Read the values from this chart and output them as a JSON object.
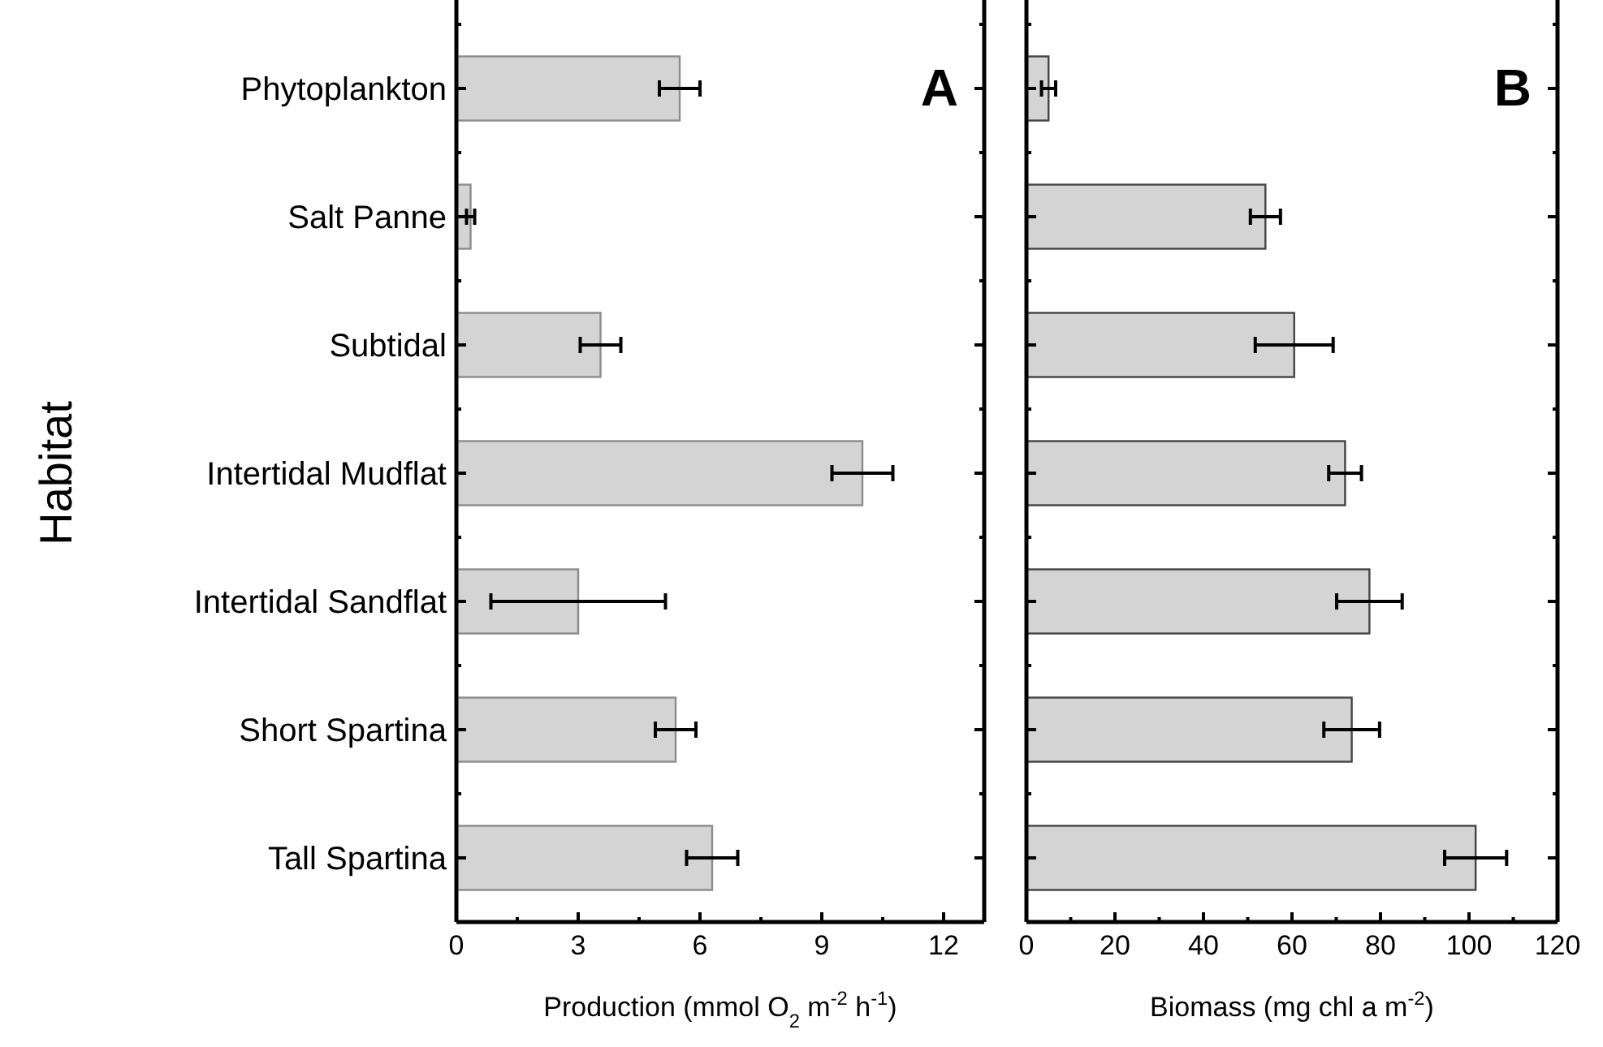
{
  "chart_data": [
    {
      "type": "bar",
      "orientation": "horizontal",
      "ylabel": "Habitat",
      "xlabel": "Production (mmol O$_{2}$ m$^{-2}$ h$^{-1}$)",
      "annotations": [
        "A"
      ],
      "categories": [
        "Phytoplankton",
        "Salt Panne",
        "Subtidal",
        "Intertidal Mudflat",
        "Intertidal Sandflat",
        "Short Spartina",
        "Tall Spartina"
      ],
      "values": [
        5.5,
        0.35,
        3.55,
        10.0,
        3.0,
        5.4,
        6.3
      ],
      "errors": [
        0.5,
        0.1,
        0.5,
        0.75,
        2.15,
        0.5,
        0.63
      ],
      "color": "#d3d4d3",
      "xlim": [
        0,
        13
      ],
      "xticks": [
        0,
        {
          "value": 1.5,
          "label": null
        },
        3,
        {
          "value": 4.5,
          "label": null
        },
        6,
        {
          "value": 7.5,
          "label": null
        },
        9,
        {
          "value": 10.5,
          "label": null
        },
        12
      ]
    },
    {
      "type": "bar",
      "orientation": "horizontal",
      "xlabel": "Biomass (mg chl a m$^{-2}$)",
      "annotations": [
        "B"
      ],
      "tick_labels": "x",
      "categories": [
        null,
        null,
        null,
        null,
        null,
        null,
        null
      ],
      "values": [
        5,
        54,
        60.5,
        72,
        77.5,
        73.5,
        101.5
      ],
      "errors": [
        1.6,
        3.4,
        8.8,
        3.7,
        7.4,
        6.3,
        7
      ],
      "color": "#d3d4d3",
      "xlim": [
        0,
        120
      ],
      "xticks": [
        0,
        {
          "value": 10,
          "label": null
        },
        20,
        {
          "value": 30,
          "label": null
        },
        40,
        {
          "value": 50,
          "label": null
        },
        60,
        {
          "value": 70,
          "label": null
        },
        80,
        {
          "value": 90,
          "label": null
        },
        100,
        {
          "value": 110,
          "label": null
        },
        120
      ]
    }
  ]
}
